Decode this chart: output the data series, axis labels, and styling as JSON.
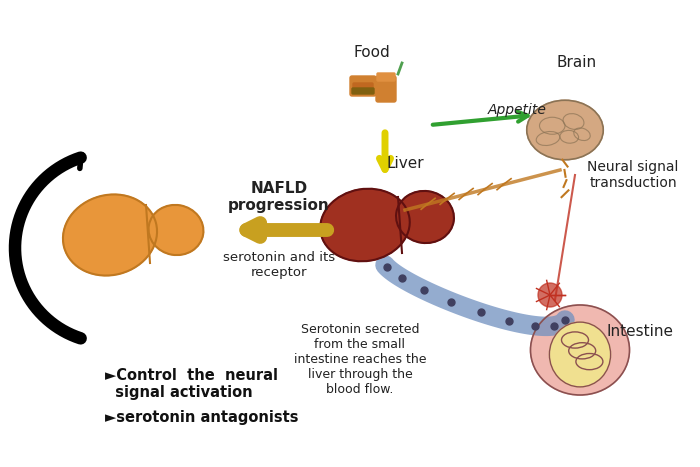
{
  "bg_color": "#ffffff",
  "labels": {
    "food": "Food",
    "brain": "Brain",
    "appetite": "Appetite",
    "liver_label": "Liver",
    "nafld": "NAFLD\nprogression",
    "serotonin_receptor": "serotonin and its\nreceptor",
    "neural_signal": "Neural signal\ntransduction",
    "intestine": "Intestine",
    "serotonin_text": "Serotonin secreted\nfrom the small\nintestine reaches the\nliver through the\nblood flow.",
    "control1": "►Control  the  neural\n  signal activation",
    "control2": "►serotonin antagonists"
  },
  "colors": {
    "healthy_liver_orange": "#E8963A",
    "healthy_liver_dark": "#C07820",
    "diseased_liver_red": "#A03020",
    "brain_color": "#D4A882",
    "brain_outline": "#8B7355",
    "intestine_pink": "#F0B8B0",
    "intestine_yellow": "#F0E090",
    "intestine_outline": "#8B5050",
    "blood_vessel_blue": "#7090C0",
    "arrow_gold": "#C8A020",
    "arrow_yellow": "#E0D000",
    "green_arrow": "#30A030",
    "food_color": "#D08030",
    "neural_red": "#C03020",
    "black": "#000000",
    "text_dark": "#222222",
    "bold_text": "#111111"
  },
  "figsize": [
    7.0,
    4.67
  ],
  "dpi": 100
}
